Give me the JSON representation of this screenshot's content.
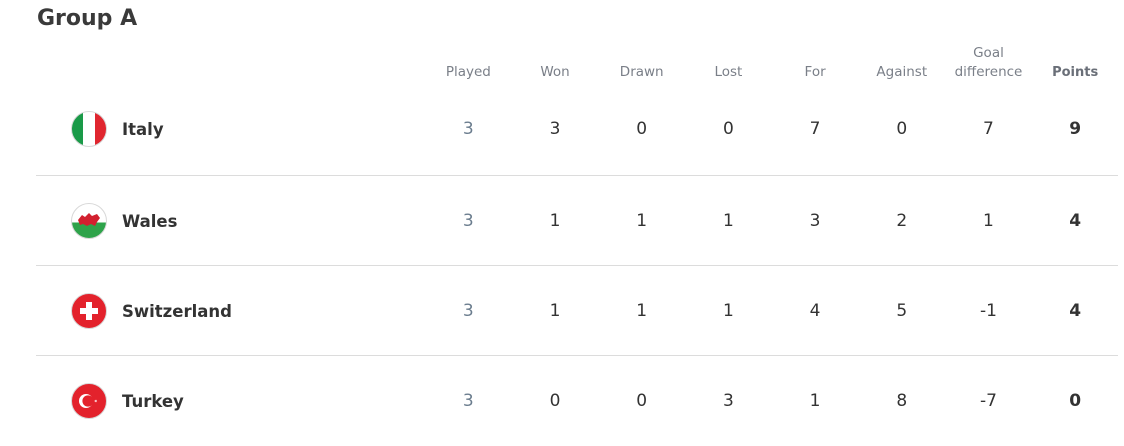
{
  "title": "Group A",
  "columns": {
    "played": "Played",
    "won": "Won",
    "drawn": "Drawn",
    "lost": "Lost",
    "for": "For",
    "against": "Against",
    "gd_line1": "Goal",
    "gd_line2": "difference",
    "points": "Points"
  },
  "teams": [
    {
      "name": "Italy",
      "flag": "italy-flag",
      "played": "3",
      "won": "3",
      "drawn": "0",
      "lost": "0",
      "for": "7",
      "against": "0",
      "gd": "7",
      "points": "9"
    },
    {
      "name": "Wales",
      "flag": "wales-flag",
      "played": "3",
      "won": "1",
      "drawn": "1",
      "lost": "1",
      "for": "3",
      "against": "2",
      "gd": "1",
      "points": "4"
    },
    {
      "name": "Switzerland",
      "flag": "switzerland-flag",
      "played": "3",
      "won": "1",
      "drawn": "1",
      "lost": "1",
      "for": "4",
      "against": "5",
      "gd": "-1",
      "points": "4"
    },
    {
      "name": "Turkey",
      "flag": "turkey-flag",
      "played": "3",
      "won": "0",
      "drawn": "0",
      "lost": "3",
      "for": "1",
      "against": "8",
      "gd": "-7",
      "points": "0"
    }
  ]
}
